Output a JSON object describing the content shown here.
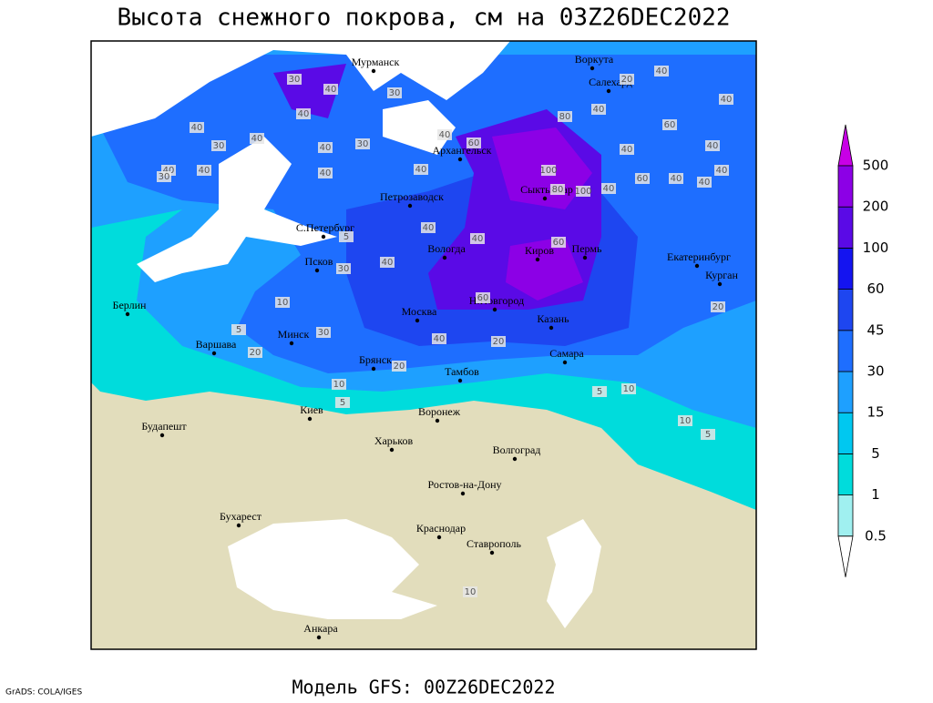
{
  "title": "Высота снежного покрова, см на 03Z26DEC2022",
  "footer": "Модель GFS: 00Z26DEC2022",
  "credit": "GrADS: COLA/IGES",
  "cities": [
    "Мурманск",
    "Воркута",
    "Салехард",
    "Архангельск",
    "Петрозаводск",
    "Сыктывкар",
    "С.Петербург",
    "Вологда",
    "Киров",
    "Пермь",
    "Екатеринбург",
    "Курган",
    "Псков",
    "Н.Новгород",
    "Казань",
    "Москва",
    "Минск",
    "Берлин",
    "Варшава",
    "Брянск",
    "Тамбов",
    "Самара",
    "Киев",
    "Воронеж",
    "Будапешт",
    "Харьков",
    "Волгоград",
    "Ростов-на-Дону",
    "Бухарест",
    "Краснодар",
    "Ставрополь",
    "Анкара"
  ],
  "contour_labels": [
    30,
    40,
    30,
    40,
    40,
    30,
    40,
    40,
    30,
    40,
    30,
    40,
    40,
    40,
    40,
    60,
    80,
    100,
    80,
    100,
    40,
    60,
    40,
    40,
    60,
    40,
    40,
    40,
    40,
    20,
    40,
    40,
    60,
    40,
    60,
    40,
    40,
    30,
    20,
    10,
    5,
    30,
    40,
    20,
    10,
    5,
    20,
    5,
    10,
    10,
    5,
    20,
    5,
    10
  ],
  "legend": {
    "levels": [
      0.5,
      1,
      5,
      15,
      30,
      45,
      60,
      100,
      200,
      500
    ],
    "colors": [
      "#a0f0f0",
      "#00dcdc",
      "#00c8f0",
      "#1ea0ff",
      "#1e6eff",
      "#1e46f0",
      "#1414f0",
      "#5a0ae6",
      "#8c00e6",
      "#c800e6"
    ]
  }
}
